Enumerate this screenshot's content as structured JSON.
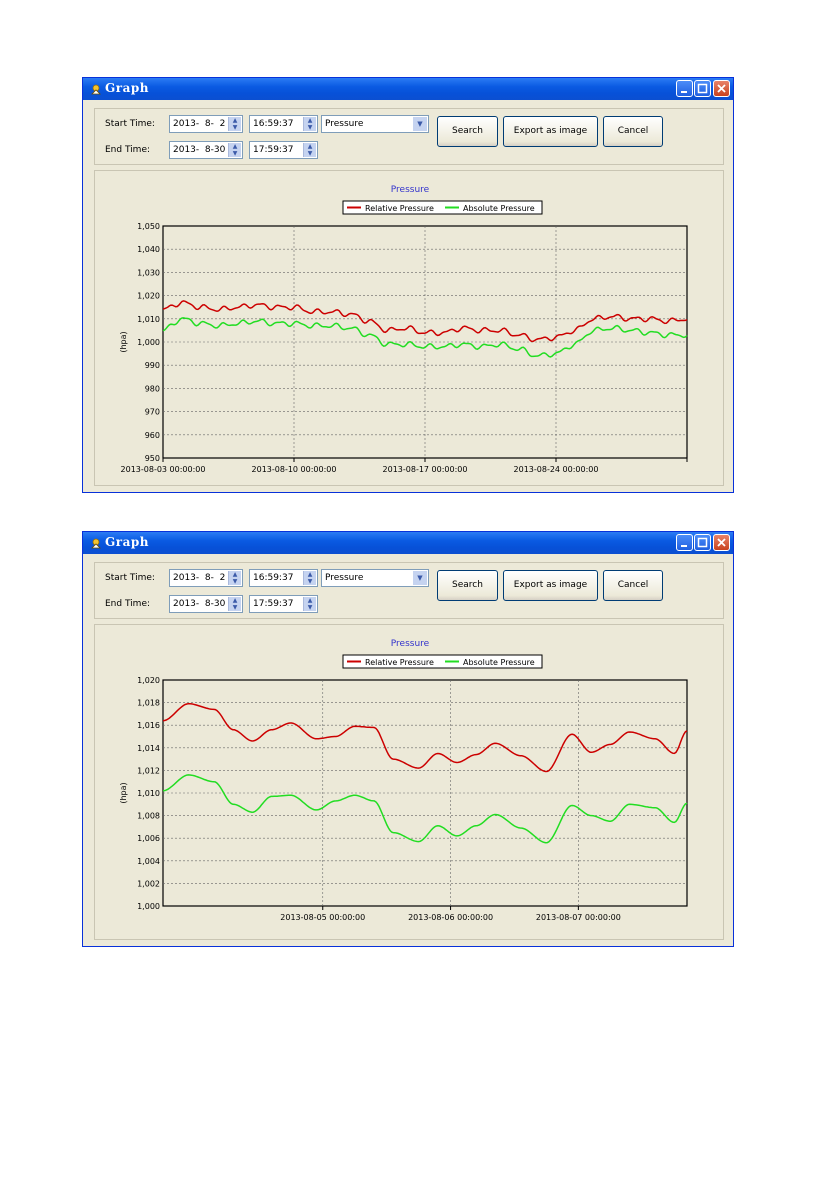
{
  "windows": [
    {
      "title": "Graph",
      "start_label": "Start Time:",
      "end_label": "End Time:",
      "start_date": "2013-  8-  2",
      "start_time": "16:59:37",
      "end_date": "2013-  8-30",
      "end_time": "17:59:37",
      "type_select": "Pressure",
      "search_label": "Search",
      "export_label": "Export as image",
      "cancel_label": "Cancel"
    },
    {
      "title": "Graph",
      "start_label": "Start Time:",
      "end_label": "End Time:",
      "start_date": "2013-  8-  2",
      "start_time": "16:59:37",
      "end_date": "2013-  8-30",
      "end_time": "17:59:37",
      "type_select": "Pressure",
      "search_label": "Search",
      "export_label": "Export as image",
      "cancel_label": "Cancel"
    }
  ],
  "colors": {
    "relative": "#cc0000",
    "absolute": "#22dd22",
    "title": "#3333cc"
  },
  "chart_data": [
    {
      "type": "line",
      "title": "Pressure",
      "ylabel": "(hpa)",
      "ylim": [
        950,
        1050
      ],
      "yticks": [
        "950",
        "960",
        "970",
        "980",
        "990",
        "1,000",
        "1,010",
        "1,020",
        "1,030",
        "1,040",
        "1,050"
      ],
      "xlim_days": [
        3,
        31
      ],
      "xticks": [
        {
          "day": 3,
          "label": "2013-08-03 00:00:00"
        },
        {
          "day": 10,
          "label": "2013-08-10 00:00:00"
        },
        {
          "day": 17,
          "label": "2013-08-17 00:00:00"
        },
        {
          "day": 24,
          "label": "2013-08-24 00:00:00"
        },
        {
          "day": 31,
          "label": ""
        }
      ],
      "legend": "top",
      "grid": true,
      "series": [
        {
          "name": "Relative Pressure",
          "x": [
            3,
            4,
            5,
            6,
            7,
            8,
            9,
            10,
            11,
            12,
            13,
            14,
            15,
            16,
            17,
            18,
            19,
            20,
            21,
            22,
            23,
            24,
            25,
            26,
            27,
            28,
            29,
            30,
            31
          ],
          "values": [
            1014,
            1017,
            1015,
            1014,
            1015,
            1016,
            1015,
            1015,
            1013,
            1013,
            1012,
            1009,
            1005,
            1006,
            1004,
            1004,
            1006,
            1005,
            1005,
            1003,
            1001,
            1002,
            1005,
            1010,
            1011,
            1010,
            1010,
            1009,
            1010
          ]
        },
        {
          "name": "Absolute Pressure",
          "x": [
            3,
            4,
            5,
            6,
            7,
            8,
            9,
            10,
            11,
            12,
            13,
            14,
            15,
            16,
            17,
            18,
            19,
            20,
            21,
            22,
            23,
            24,
            25,
            26,
            27,
            28,
            29,
            30,
            31
          ],
          "values": [
            1005,
            1010,
            1008,
            1007,
            1008,
            1009,
            1008,
            1008,
            1007,
            1007,
            1006,
            1003,
            999,
            999,
            998,
            998,
            999,
            998,
            999,
            997,
            994,
            995,
            999,
            1005,
            1006,
            1005,
            1004,
            1003,
            1003
          ]
        }
      ]
    },
    {
      "type": "line",
      "title": "Pressure",
      "ylabel": "(hpa)",
      "ylim": [
        1000,
        1020
      ],
      "yticks": [
        "1,000",
        "1,002",
        "1,004",
        "1,006",
        "1,008",
        "1,010",
        "1,012",
        "1,014",
        "1,016",
        "1,018",
        "1,020"
      ],
      "xlim_days": [
        3.75,
        7.85
      ],
      "xticks": [
        {
          "day": 5,
          "label": "2013-08-05 00:00:00"
        },
        {
          "day": 6,
          "label": "2013-08-06 00:00:00"
        },
        {
          "day": 7,
          "label": "2013-08-07 00:00:00"
        }
      ],
      "legend": "top",
      "grid": true,
      "series": [
        {
          "name": "Relative Pressure",
          "x": [
            3.75,
            3.95,
            4.15,
            4.3,
            4.45,
            4.6,
            4.75,
            4.95,
            5.1,
            5.25,
            5.4,
            5.55,
            5.75,
            5.9,
            6.05,
            6.2,
            6.35,
            6.55,
            6.75,
            6.95,
            7.1,
            7.25,
            7.4,
            7.6,
            7.75,
            7.85
          ],
          "values": [
            1016.4,
            1017.9,
            1017.4,
            1015.6,
            1014.6,
            1015.6,
            1016.2,
            1014.8,
            1015.0,
            1015.9,
            1015.8,
            1013.0,
            1012.2,
            1013.5,
            1012.7,
            1013.4,
            1014.4,
            1013.3,
            1011.9,
            1015.2,
            1013.6,
            1014.3,
            1015.4,
            1014.8,
            1013.5,
            1015.5
          ]
        },
        {
          "name": "Absolute Pressure",
          "x": [
            3.75,
            3.95,
            4.15,
            4.3,
            4.45,
            4.6,
            4.75,
            4.95,
            5.1,
            5.25,
            5.4,
            5.55,
            5.75,
            5.9,
            6.05,
            6.2,
            6.35,
            6.55,
            6.75,
            6.95,
            7.1,
            7.25,
            7.4,
            7.6,
            7.75,
            7.85
          ],
          "values": [
            1010.2,
            1011.6,
            1011.0,
            1009.0,
            1008.3,
            1009.7,
            1009.8,
            1008.5,
            1009.3,
            1009.8,
            1009.3,
            1006.5,
            1005.7,
            1007.1,
            1006.2,
            1007.1,
            1008.1,
            1006.9,
            1005.6,
            1008.9,
            1008.0,
            1007.5,
            1009.0,
            1008.7,
            1007.4,
            1009.1
          ]
        }
      ]
    }
  ]
}
